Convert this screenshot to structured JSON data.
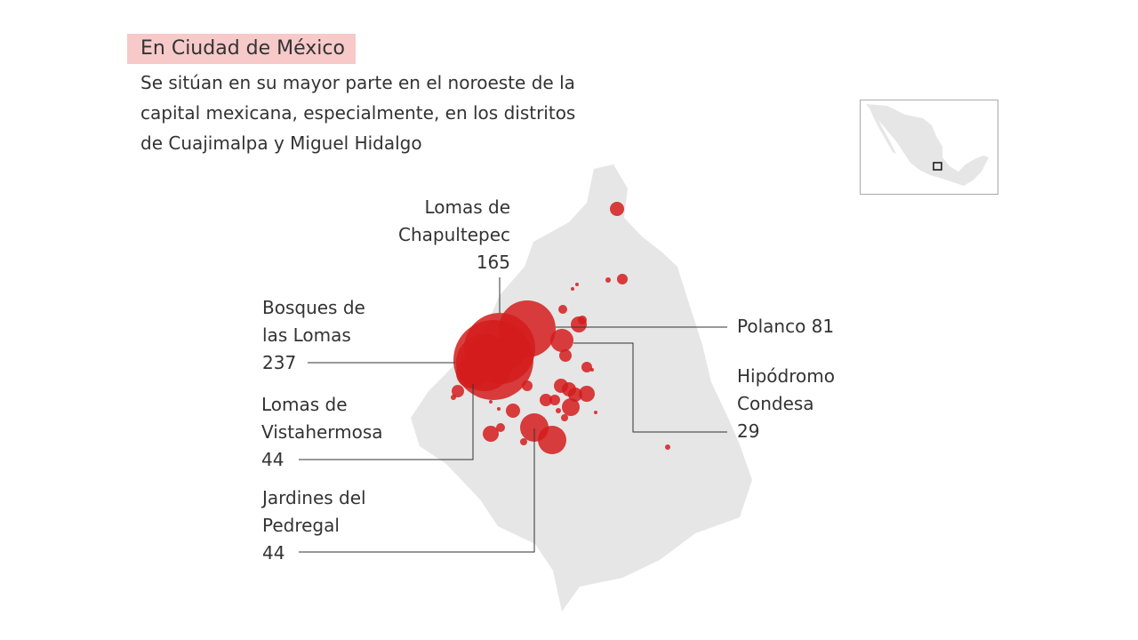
{
  "header": {
    "title": "En Ciudad de México",
    "subtitle": "Se sitúan en su mayor parte en el noroeste de la capital mexicana, especialmente, en los distritos de Cuajimalpa y Miguel Hidalgo"
  },
  "labels": [
    {
      "name": "Lomas de Chapultepec",
      "value": "165"
    },
    {
      "name": "Bosques de las Lomas",
      "value": "237"
    },
    {
      "name": "Lomas de Vistahermosa",
      "value": "44"
    },
    {
      "name": "Jardines del Pedregal",
      "value": "44"
    },
    {
      "name": "Polanco",
      "value": "81"
    },
    {
      "name": "Hipódromo Condesa",
      "value": "29"
    }
  ],
  "colors": {
    "bubble": "#d31c1c",
    "land": "#e6e6e6",
    "highlight": "#f7c9c9"
  }
}
